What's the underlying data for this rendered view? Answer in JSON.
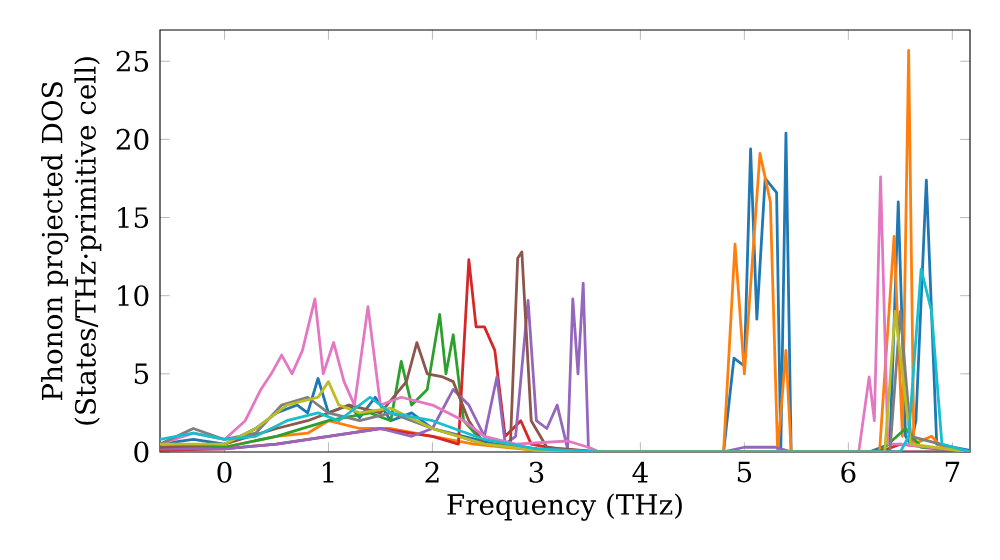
{
  "chart_data": {
    "type": "line",
    "xlabel": "Frequency (THz)",
    "ylabel": "Phonon projected DOS\n(States/THz·primitive cell)",
    "xlim": [
      -0.62,
      7.17
    ],
    "ylim": [
      0,
      27
    ],
    "xticks": [
      0,
      1,
      2,
      3,
      4,
      5,
      6,
      7
    ],
    "yticks": [
      0,
      5,
      10,
      15,
      20,
      25
    ],
    "grid": false,
    "marker": "none",
    "line_style": "solid",
    "series": [
      {
        "color": "#1f77b4",
        "x": [
          -0.62,
          -0.3,
          0,
          0.3,
          0.5,
          0.7,
          0.8,
          0.9,
          1.0,
          1.2,
          1.3,
          1.45,
          1.6,
          1.8,
          2.0,
          2.3,
          2.6,
          3.0,
          3.6,
          4.8,
          4.9,
          5.0,
          5.06,
          5.12,
          5.2,
          5.31,
          5.35,
          5.4,
          5.45,
          6.2,
          6.4,
          6.48,
          6.55,
          6.6,
          6.65,
          6.75,
          6.85,
          7.17
        ],
        "values": [
          0.5,
          0.8,
          0.5,
          1.5,
          2.5,
          3,
          2.5,
          4.7,
          2.5,
          3,
          2.2,
          3.5,
          2,
          2.5,
          1.5,
          1,
          0.5,
          0.2,
          0,
          0,
          6,
          5.5,
          19.4,
          8.5,
          17.5,
          16.6,
          0,
          20.4,
          0,
          0,
          0.5,
          16,
          1,
          0.5,
          2,
          17.4,
          0.5,
          0.1
        ]
      },
      {
        "color": "#ff7f0e",
        "x": [
          -0.62,
          0,
          0.5,
          0.8,
          1.0,
          1.3,
          1.6,
          2.0,
          2.4,
          3.0,
          3.6,
          4.8,
          4.91,
          5.0,
          5.15,
          5.25,
          5.32,
          5.4,
          5.45,
          6.3,
          6.44,
          6.52,
          6.58,
          6.63,
          6.8,
          6.9,
          7.17
        ],
        "values": [
          0.2,
          0.3,
          1,
          1.2,
          2,
          1.5,
          1.5,
          1,
          0.5,
          0.1,
          0,
          0,
          13.3,
          5,
          19.1,
          16,
          0,
          6.5,
          0,
          0,
          13.8,
          1,
          25.7,
          0.5,
          1,
          0.3,
          0
        ]
      },
      {
        "color": "#2ca02c",
        "x": [
          -0.62,
          0,
          0.5,
          1.0,
          1.4,
          1.6,
          1.7,
          1.8,
          1.95,
          2.07,
          2.13,
          2.2,
          2.3,
          2.5,
          3.0,
          3.6,
          6.3,
          6.55,
          6.7,
          7.17
        ],
        "values": [
          0.3,
          0.3,
          1,
          2,
          2.5,
          2,
          5.8,
          3,
          4,
          8.8,
          5,
          7.5,
          2,
          0.5,
          0.2,
          0,
          0,
          1.5,
          0.3,
          0
        ]
      },
      {
        "color": "#d62728",
        "x": [
          -0.62,
          0,
          0.5,
          1.0,
          1.5,
          2.0,
          2.25,
          2.35,
          2.42,
          2.5,
          2.6,
          2.7,
          2.85,
          2.95,
          3.2,
          3.6,
          6.3,
          6.5,
          7.17
        ],
        "values": [
          0.1,
          0.2,
          0.5,
          1,
          1.5,
          1,
          0.5,
          12.3,
          8,
          8,
          6.5,
          1,
          2,
          0.5,
          0.2,
          0,
          0,
          0.5,
          0
        ]
      },
      {
        "color": "#9467bd",
        "x": [
          -0.62,
          0,
          0.5,
          1.0,
          1.5,
          1.8,
          2.0,
          2.2,
          2.35,
          2.5,
          2.62,
          2.7,
          2.8,
          2.92,
          3.0,
          3.1,
          3.2,
          3.3,
          3.35,
          3.4,
          3.45,
          3.5,
          3.6,
          4.8,
          5.0,
          5.3,
          5.45,
          7.17
        ],
        "values": [
          0.2,
          0.2,
          0.5,
          1,
          1.5,
          1,
          1.5,
          4,
          3,
          1,
          4.8,
          0.5,
          1,
          9.7,
          2,
          1.5,
          3,
          0.2,
          9.8,
          5,
          10.8,
          0.3,
          0,
          0,
          0.3,
          0.3,
          0,
          0
        ]
      },
      {
        "color": "#8c564b",
        "x": [
          -0.62,
          0,
          0.5,
          0.8,
          1.2,
          1.5,
          1.75,
          1.85,
          1.95,
          2.1,
          2.2,
          2.35,
          2.5,
          2.75,
          2.82,
          2.86,
          2.95,
          3.1,
          3.6,
          7.17
        ],
        "values": [
          0.3,
          0.5,
          1.5,
          2,
          3,
          2.5,
          4.5,
          7,
          5,
          4.8,
          4.5,
          2,
          0.5,
          0.5,
          12.4,
          12.8,
          2,
          0.3,
          0,
          0
        ]
      },
      {
        "color": "#e377c2",
        "x": [
          -0.62,
          -0.3,
          0,
          0.2,
          0.35,
          0.45,
          0.55,
          0.65,
          0.75,
          0.87,
          0.95,
          1.05,
          1.15,
          1.25,
          1.38,
          1.5,
          1.7,
          2.0,
          2.3,
          2.5,
          2.8,
          3.3,
          3.5,
          3.6,
          6.1,
          6.2,
          6.25,
          6.31,
          6.38,
          6.5,
          7.17
        ],
        "values": [
          0.5,
          1.2,
          0.8,
          2,
          4,
          5,
          6.2,
          5,
          6.5,
          9.8,
          5,
          7,
          4.5,
          3,
          9.3,
          3,
          3.5,
          3,
          2,
          1,
          0.5,
          0.7,
          0.3,
          0,
          0,
          4.8,
          2,
          17.6,
          0.5,
          0.5,
          0
        ]
      },
      {
        "color": "#7f7f7f",
        "x": [
          -0.62,
          -0.3,
          0,
          0.3,
          0.55,
          0.8,
          1.0,
          1.3,
          1.6,
          2.0,
          2.5,
          3.0,
          3.6,
          6.4,
          6.5,
          6.6,
          7.17
        ],
        "values": [
          0.5,
          1.5,
          0.8,
          1.2,
          3,
          3.5,
          2.5,
          2,
          2.5,
          1.5,
          0.5,
          0.2,
          0,
          0,
          9,
          1,
          0
        ]
      },
      {
        "color": "#bcbd22",
        "x": [
          -0.62,
          0,
          0.3,
          0.6,
          0.9,
          1.0,
          1.1,
          1.3,
          1.6,
          2.0,
          2.5,
          3.0,
          3.6,
          6.35,
          6.45,
          6.52,
          6.6,
          7.17
        ],
        "values": [
          0.5,
          0.5,
          1.5,
          3,
          3.5,
          4.5,
          3,
          2.5,
          2.8,
          1.5,
          0.5,
          0.1,
          0,
          0,
          9,
          5,
          0.5,
          0
        ]
      },
      {
        "color": "#17becf",
        "x": [
          -0.62,
          -0.3,
          0,
          0.3,
          0.6,
          0.9,
          1.1,
          1.4,
          1.6,
          2.0,
          2.5,
          3.0,
          3.6,
          6.5,
          6.58,
          6.7,
          6.8,
          6.9,
          7.17
        ],
        "values": [
          0.8,
          1.2,
          0.8,
          1,
          2,
          2.5,
          2,
          3.5,
          2.5,
          2,
          0.8,
          0.2,
          0,
          0,
          1,
          11.7,
          9,
          0.5,
          0
        ]
      }
    ]
  }
}
